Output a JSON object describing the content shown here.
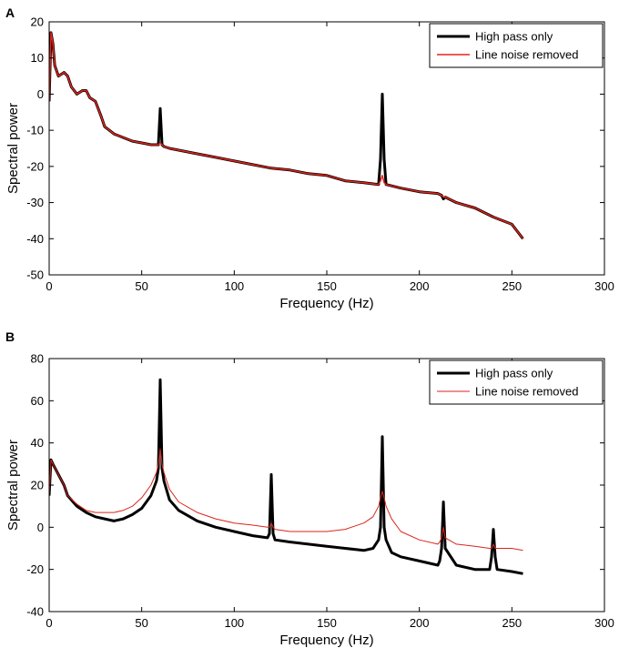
{
  "chart_data": [
    {
      "panel": "A",
      "type": "line",
      "title": "",
      "xlabel": "Frequency (Hz)",
      "ylabel": "Spectral power",
      "xlim": [
        0,
        300
      ],
      "ylim": [
        -50,
        20
      ],
      "xticks": [
        0,
        50,
        100,
        150,
        200,
        250,
        300
      ],
      "yticks": [
        -50,
        -40,
        -30,
        -20,
        -10,
        0,
        10,
        20
      ],
      "grid": false,
      "legend_position": "top-right",
      "series": [
        {
          "name": "High pass only",
          "color": "#000000",
          "x": [
            0,
            1,
            2,
            3,
            5,
            8,
            10,
            12,
            15,
            18,
            20,
            22,
            25,
            28,
            30,
            35,
            40,
            45,
            50,
            55,
            59,
            60,
            61,
            62,
            65,
            70,
            80,
            90,
            100,
            110,
            120,
            130,
            140,
            150,
            160,
            170,
            178,
            179,
            180,
            181,
            182,
            190,
            200,
            210,
            212,
            213,
            214,
            220,
            230,
            240,
            250,
            256
          ],
          "y": [
            -2,
            17,
            14,
            8,
            5,
            6,
            5,
            2,
            0,
            1,
            1,
            -1,
            -2,
            -6,
            -9,
            -11,
            -12,
            -13,
            -13.5,
            -14,
            -14,
            -4,
            -14,
            -14.5,
            -15,
            -15.5,
            -16.5,
            -17.5,
            -18.5,
            -19.5,
            -20.5,
            -21,
            -22,
            -22.5,
            -24,
            -24.5,
            -25,
            -18,
            0,
            -18,
            -25,
            -26,
            -27,
            -27.5,
            -28,
            -29,
            -28.5,
            -30,
            -31.5,
            -34,
            -36,
            -40
          ]
        },
        {
          "name": "Line noise removed",
          "color": "#e8231b",
          "x": [
            0,
            1,
            2,
            3,
            5,
            8,
            10,
            12,
            15,
            18,
            20,
            22,
            25,
            28,
            30,
            35,
            40,
            45,
            50,
            55,
            59,
            60,
            61,
            62,
            65,
            70,
            80,
            90,
            100,
            110,
            120,
            130,
            140,
            150,
            160,
            170,
            178,
            179,
            180,
            181,
            182,
            190,
            200,
            210,
            212,
            213,
            214,
            220,
            230,
            240,
            250,
            256
          ],
          "y": [
            -2,
            17,
            14,
            8,
            5,
            6,
            5,
            2,
            0,
            1,
            1,
            -1,
            -2,
            -6,
            -9,
            -11,
            -12,
            -13,
            -13.5,
            -14,
            -14,
            -13.5,
            -14,
            -14.5,
            -15,
            -15.5,
            -16.5,
            -17.5,
            -18.5,
            -19.5,
            -20.5,
            -21,
            -22,
            -22.5,
            -24,
            -24.5,
            -25,
            -24,
            -22.5,
            -24.5,
            -25,
            -26,
            -27,
            -27.5,
            -28,
            -28.5,
            -28.5,
            -30,
            -31.5,
            -34,
            -36,
            -40
          ]
        }
      ]
    },
    {
      "panel": "B",
      "type": "line",
      "title": "",
      "xlabel": "Frequency (Hz)",
      "ylabel": "Spectral power",
      "xlim": [
        0,
        300
      ],
      "ylim": [
        -40,
        80
      ],
      "xticks": [
        0,
        50,
        100,
        150,
        200,
        250,
        300
      ],
      "yticks": [
        -40,
        -20,
        0,
        20,
        40,
        60,
        80
      ],
      "grid": false,
      "legend_position": "top-right",
      "series": [
        {
          "name": "High pass only",
          "color": "#000000",
          "x": [
            0,
            1,
            2,
            5,
            8,
            10,
            15,
            20,
            25,
            30,
            35,
            40,
            45,
            50,
            55,
            58,
            59,
            60,
            61,
            62,
            65,
            70,
            80,
            90,
            100,
            110,
            118,
            119,
            120,
            121,
            122,
            130,
            140,
            150,
            160,
            170,
            175,
            178,
            179,
            180,
            181,
            182,
            185,
            190,
            200,
            210,
            211,
            212,
            213,
            214,
            220,
            230,
            238,
            239,
            240,
            241,
            242,
            250,
            256
          ],
          "y": [
            15,
            32,
            30,
            25,
            20,
            15,
            10,
            7,
            5,
            4,
            3,
            4,
            6,
            9,
            15,
            22,
            28,
            70,
            28,
            22,
            13,
            8,
            3,
            0,
            -2,
            -4,
            -5,
            -3,
            25,
            -3,
            -6,
            -7,
            -8,
            -9,
            -10,
            -11,
            -10,
            -6,
            0,
            43,
            0,
            -6,
            -12,
            -14,
            -16,
            -18,
            -16,
            -10,
            12,
            -10,
            -18,
            -20,
            -20,
            -14,
            -1,
            -14,
            -20,
            -21,
            -22
          ]
        },
        {
          "name": "Line noise removed",
          "color": "#d9261c",
          "x": [
            0,
            1,
            2,
            5,
            8,
            10,
            15,
            20,
            25,
            30,
            35,
            40,
            45,
            50,
            55,
            58,
            59,
            60,
            61,
            62,
            65,
            70,
            80,
            90,
            100,
            110,
            118,
            119,
            120,
            121,
            122,
            130,
            140,
            150,
            160,
            170,
            175,
            178,
            179,
            180,
            181,
            182,
            185,
            190,
            200,
            210,
            211,
            212,
            213,
            214,
            220,
            230,
            238,
            239,
            240,
            241,
            242,
            250,
            256
          ],
          "y": [
            15,
            32,
            30,
            25,
            20,
            15,
            11,
            8,
            7,
            7,
            7,
            8,
            10,
            14,
            20,
            26,
            30,
            37,
            30,
            26,
            18,
            12,
            7,
            4,
            2,
            1,
            0,
            0,
            2,
            0,
            -1,
            -2,
            -2,
            -2,
            -1,
            2,
            5,
            10,
            14,
            17,
            14,
            10,
            4,
            -2,
            -6,
            -8,
            -7,
            -5,
            0,
            -5,
            -8,
            -9,
            -10,
            -10,
            -8,
            -10,
            -10,
            -10,
            -11
          ]
        }
      ]
    }
  ]
}
